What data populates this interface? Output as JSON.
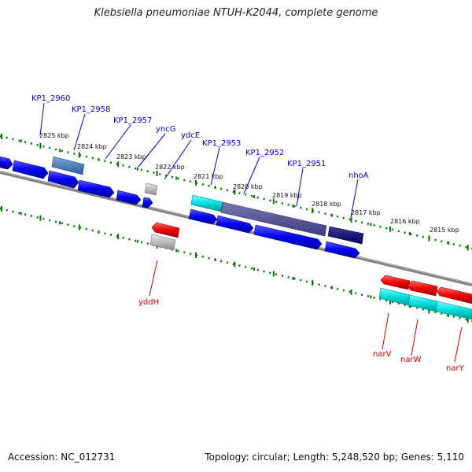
{
  "title": "Klebsiella pneumoniae NTUH-K2044, complete genome",
  "footer": {
    "accession": "Accession: NC_012731",
    "summary": "Topology: circular; Length: 5,248,520 bp; Genes: 5,110"
  },
  "ticks": [
    "2825 kbp",
    "2824 kbp",
    "2823 kbp",
    "2822 kbp",
    "2821 kbp",
    "2820 kbp",
    "2819 kbp",
    "2818 kbp",
    "2817 kbp",
    "2816 kbp",
    "2815 kbp"
  ],
  "upper_labels": [
    "KP1_2960",
    "KP1_2958",
    "KP1_2957",
    "yncG",
    "ydcE",
    "KP1_2953",
    "KP1_2952",
    "KP1_2951",
    "nhoA"
  ],
  "lower_labels": [
    "yddH",
    "narV",
    "narW",
    "narY"
  ],
  "colors": {
    "label_blue": "#0000cc",
    "label_red": "#cc0000",
    "gene_blue": "#0000ee",
    "gene_red": "#ee0000",
    "gene_cyan": "#00cccc",
    "gene_gray": "#aaaaaa",
    "tick_green": "#007700"
  }
}
